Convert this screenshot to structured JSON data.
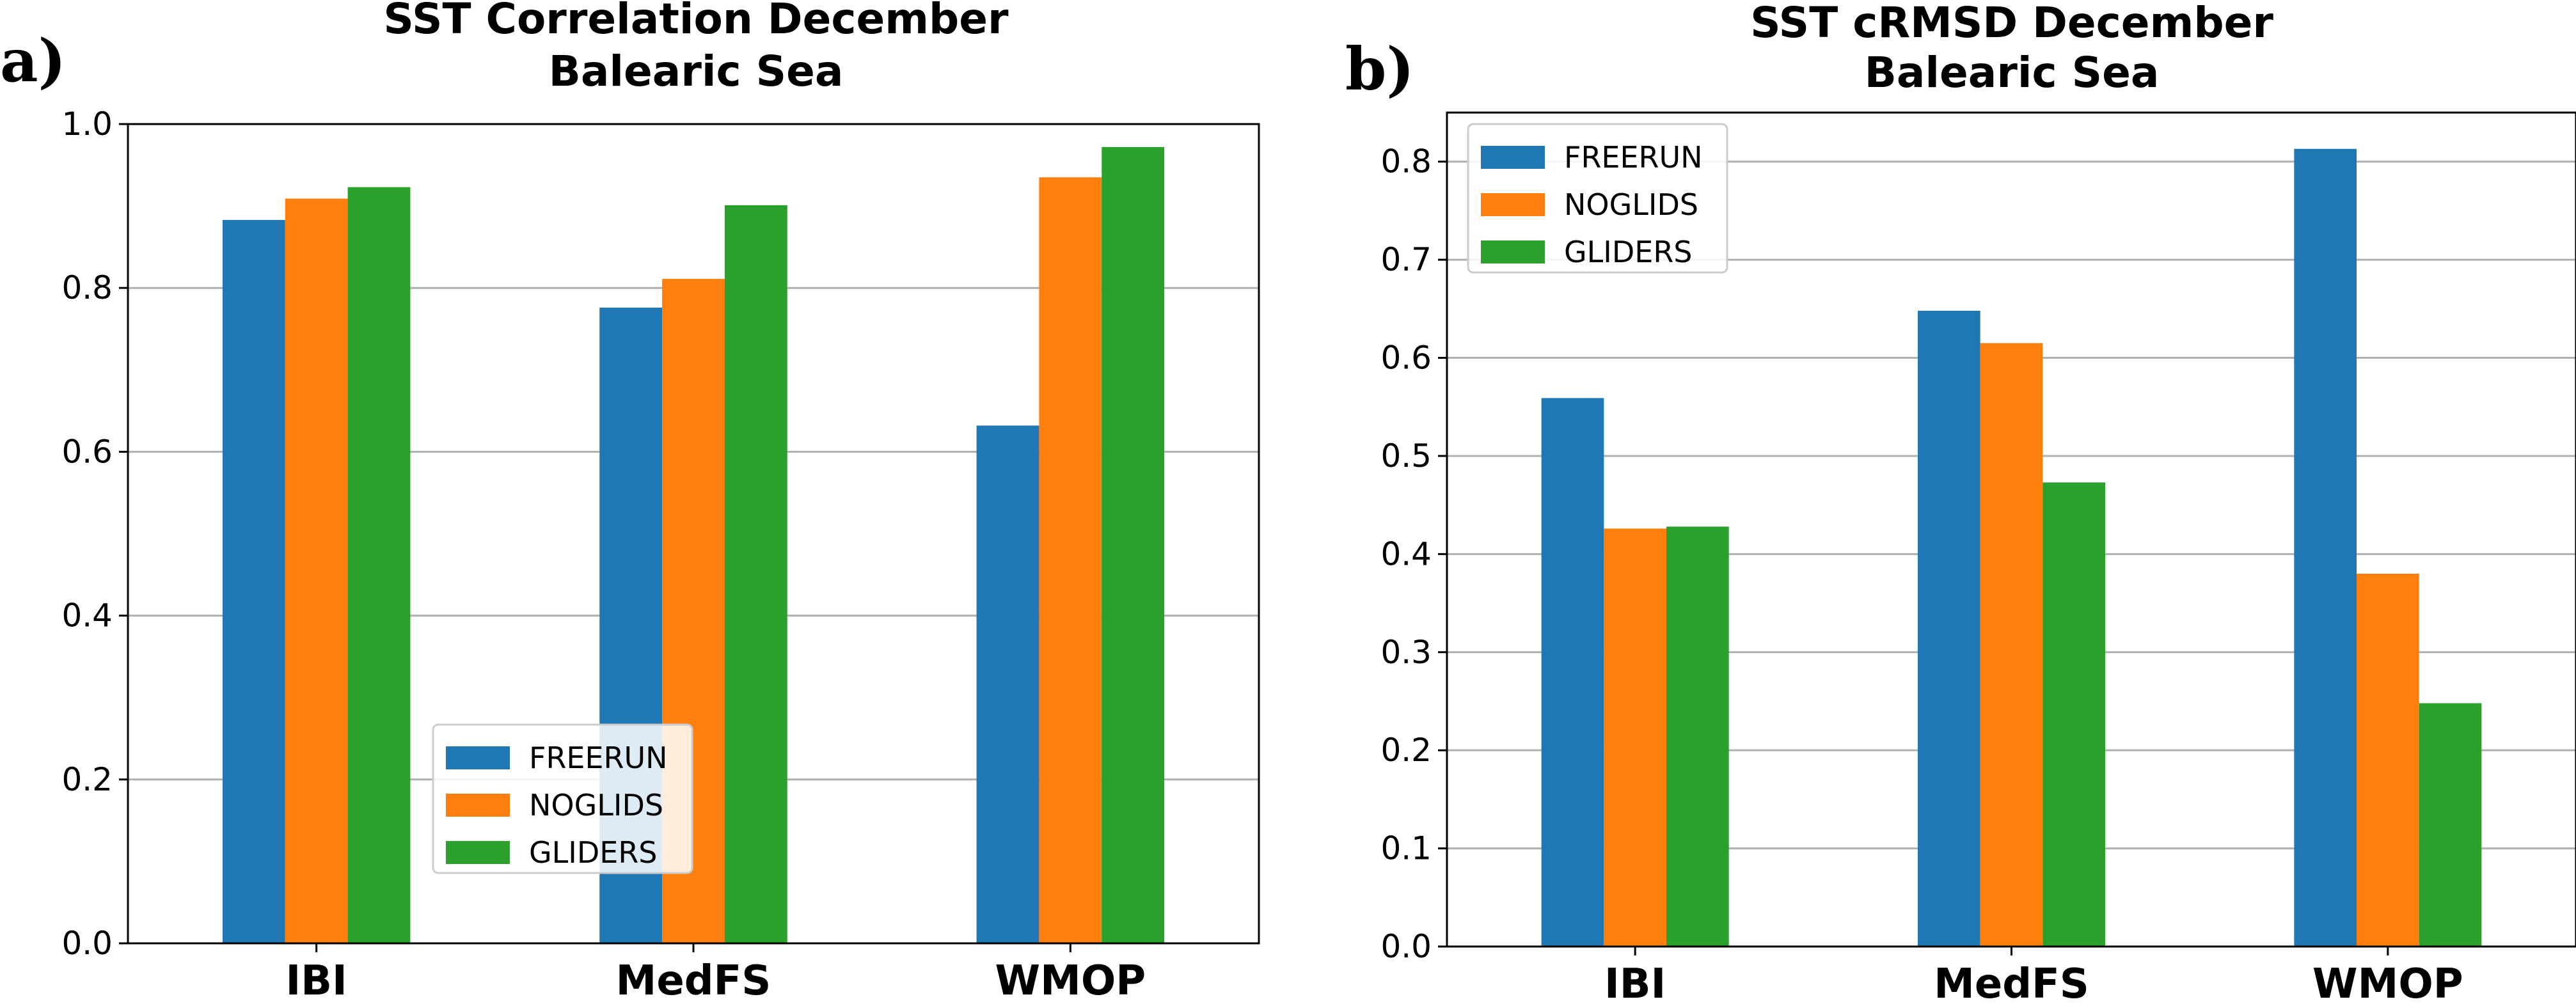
{
  "chart_data": [
    {
      "type": "bar",
      "panel_label": "a)",
      "title": [
        "SST Correlation December",
        "Balearic Sea"
      ],
      "categories": [
        "IBI",
        "MedFS",
        "WMOP"
      ],
      "series": [
        {
          "name": "FREERUN",
          "color": "#1f77b4",
          "values": [
            0.883,
            0.776,
            0.632
          ]
        },
        {
          "name": "NOGLIDS",
          "color": "#ff7f0e",
          "values": [
            0.909,
            0.811,
            0.935
          ]
        },
        {
          "name": "GLIDERS",
          "color": "#2ca02c",
          "values": [
            0.923,
            0.901,
            0.972
          ]
        }
      ],
      "ylim": [
        0,
        1.0
      ],
      "yticks": [
        0.0,
        0.2,
        0.4,
        0.6,
        0.8,
        1.0
      ],
      "ytick_labels": [
        "0.0",
        "0.2",
        "0.4",
        "0.6",
        "0.8",
        "1.0"
      ],
      "grid": true,
      "legend_position": "lower-center"
    },
    {
      "type": "bar",
      "panel_label": "b)",
      "title": [
        "SST cRMSD December",
        "Balearic Sea"
      ],
      "categories": [
        "IBI",
        "MedFS",
        "WMOP"
      ],
      "series": [
        {
          "name": "FREERUN",
          "color": "#1f77b4",
          "values": [
            0.559,
            0.648,
            0.813
          ]
        },
        {
          "name": "NOGLIDS",
          "color": "#ff7f0e",
          "values": [
            0.426,
            0.615,
            0.38
          ]
        },
        {
          "name": "GLIDERS",
          "color": "#2ca02c",
          "values": [
            0.428,
            0.473,
            0.248
          ]
        }
      ],
      "ylim": [
        0,
        0.85
      ],
      "yticks": [
        0.0,
        0.1,
        0.2,
        0.3,
        0.4,
        0.5,
        0.6,
        0.7,
        0.8
      ],
      "ytick_labels": [
        "0.0",
        "0.1",
        "0.2",
        "0.3",
        "0.4",
        "0.5",
        "0.6",
        "0.7",
        "0.8"
      ],
      "grid": true,
      "legend_position": "upper-left"
    }
  ]
}
